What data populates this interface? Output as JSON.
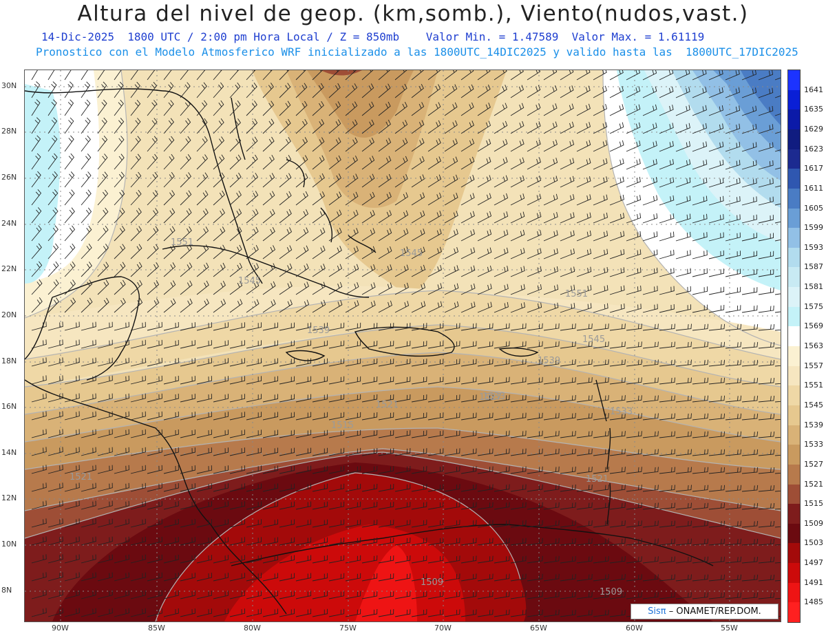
{
  "header": {
    "title": "Altura del nivel de geop. (km,somb.), Viento(nudos,vast.)",
    "line1": "14-Dic-2025  1800 UTC / 2:00 pm Hora Local / Z = 850mb    Valor Min. = 1.47589  Valor Max. = 1.61119",
    "line2": "Pronostico con el Modelo Atmosferico WRF inicializado a las 1800UTC_14DIC2025 y valido hasta las  1800UTC_17DIC2025"
  },
  "map": {
    "lat_labels": [
      "30N",
      "28N",
      "26N",
      "24N",
      "22N",
      "20N",
      "18N",
      "16N",
      "14N",
      "12N",
      "10N",
      "8N"
    ],
    "lon_labels": [
      "90W",
      "85W",
      "80W",
      "75W",
      "70W",
      "65W",
      "60W",
      "55W"
    ],
    "contour_labels": [
      "1551",
      "1545",
      "1545",
      "1551",
      "1545",
      "1539",
      "1539",
      "1533",
      "1527",
      "1521",
      "1515",
      "1521",
      "1521",
      "1509",
      "1509",
      "1533"
    ]
  },
  "colorbar": {
    "levels": [
      {
        "label": "1641",
        "color": "#1c33ff"
      },
      {
        "label": "1635",
        "color": "#0a1fd6"
      },
      {
        "label": "1629",
        "color": "#0b1aa8"
      },
      {
        "label": "1623",
        "color": "#101c80"
      },
      {
        "label": "1617",
        "color": "#1c2a90"
      },
      {
        "label": "1611",
        "color": "#2f57b0"
      },
      {
        "label": "1605",
        "color": "#4a7cc4"
      },
      {
        "label": "1599",
        "color": "#6a9ed6"
      },
      {
        "label": "1593",
        "color": "#92c0e6"
      },
      {
        "label": "1587",
        "color": "#b2dcee"
      },
      {
        "label": "1581",
        "color": "#c8eaf3"
      },
      {
        "label": "1575",
        "color": "#dcf3f8"
      },
      {
        "label": "1569",
        "color": "#c4f2f8"
      },
      {
        "label": "1563",
        "color": "#ffffff"
      },
      {
        "label": "1557",
        "color": "#fbf1d2"
      },
      {
        "label": "1551",
        "color": "#f6e6c0"
      },
      {
        "label": "1545",
        "color": "#efd8a6"
      },
      {
        "label": "1539",
        "color": "#e6c88f"
      },
      {
        "label": "1533",
        "color": "#d9b277"
      },
      {
        "label": "1527",
        "color": "#c99a5f"
      },
      {
        "label": "1521",
        "color": "#b77a4c"
      },
      {
        "label": "1515",
        "color": "#9e4e36"
      },
      {
        "label": "1509",
        "color": "#7e1c1c"
      },
      {
        "label": "1503",
        "color": "#6b0a10"
      },
      {
        "label": "1497",
        "color": "#a30a0a"
      },
      {
        "label": "1491",
        "color": "#cc0a0a"
      },
      {
        "label": "1485",
        "color": "#ee1414"
      },
      {
        "label": "",
        "color": "#ff2020"
      }
    ]
  },
  "credit": {
    "brand": "Sisπ",
    "text": "– ONAMET/REP.DOM."
  }
}
